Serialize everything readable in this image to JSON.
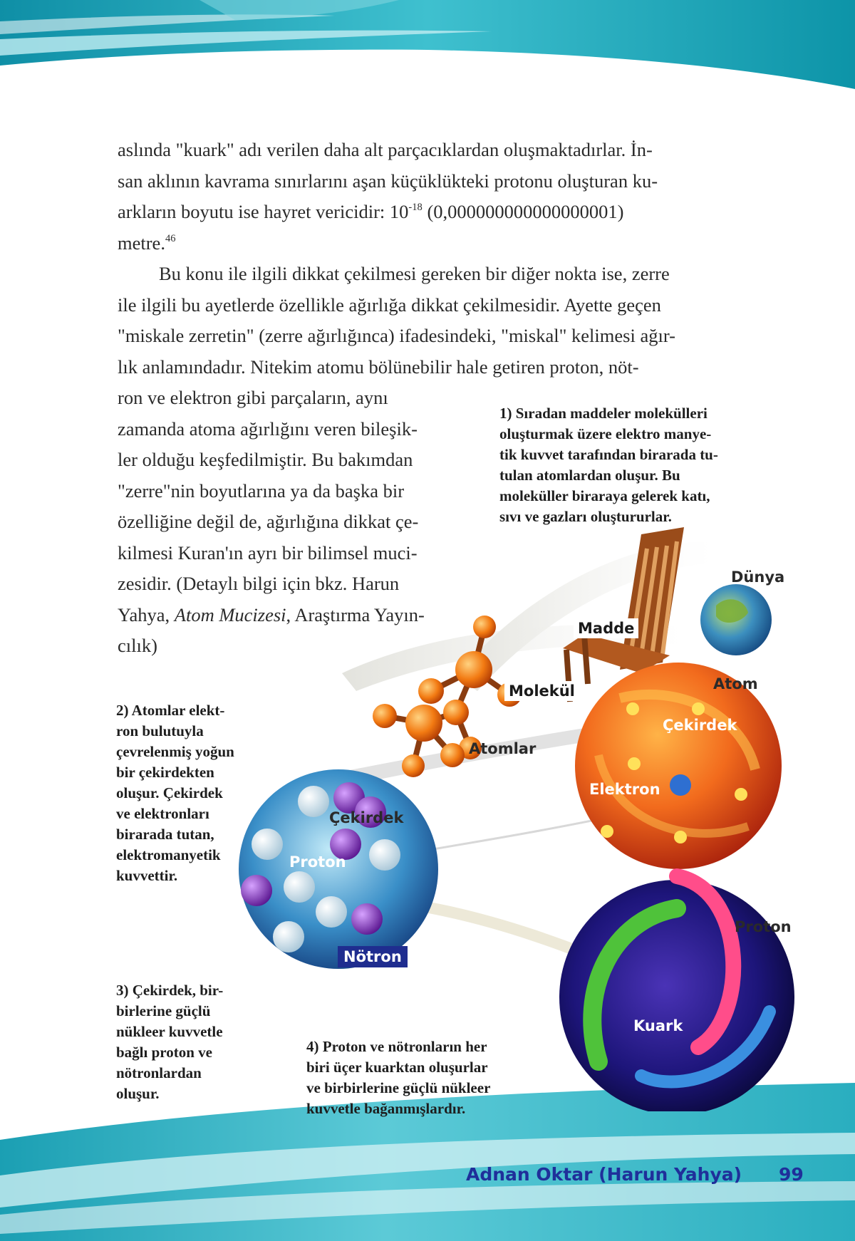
{
  "main_text": {
    "p1_line1": "aslında \"kuark\" adı verilen daha alt parçacıklardan oluşmaktadırlar. İn-",
    "p1_line2": "san aklının kavrama sınırlarını aşan küçüklükteki protonu oluşturan ku-",
    "p1_line3_a": "arkların boyutu ise hayret vericidir: 10",
    "p1_line3_exp": "-18",
    "p1_line3_b": " (0,000000000000000001)",
    "p1_line4_a": "metre.",
    "p1_line4_ref": "46",
    "p2_line1": "Bu konu ile ilgili dikkat çekilmesi gereken bir diğer nokta ise, zerre",
    "p2_line2": "ile ilgili bu ayetlerde özellikle ağırlığa dikkat çekilmesidir. Ayette geçen",
    "p2_line3": "\"miskale zerretin\" (zerre ağırlığınca) ifadesindeki, \"miskal\" kelimesi ağır-",
    "p2_line4": "lık anlamındadır. Nitekim atomu bölünebilir hale getiren proton, nöt-",
    "p2_line5": "ron ve elektron gibi parçaların, aynı",
    "p2_line6": "zamanda atoma ağırlığını veren bileşik-",
    "p2_line7": "ler olduğu keşfedilmiştir. Bu bakımdan",
    "p2_line8": "\"zerre\"nin boyutlarına ya da başka bir",
    "p2_line9": "özelliğine değil de, ağırlığına dikkat çe-",
    "p2_line10": "kilmesi Kuran'ın ayrı bir bilimsel muci-",
    "p2_line11": "zesidir. (Detaylı bilgi için bkz. Harun",
    "p2_line12_a": "Yahya, ",
    "p2_line12_italic": "Atom Mucizesi",
    "p2_line12_b": ", Araştırma Yayın-",
    "p2_line13": "cılık)"
  },
  "captions": {
    "c1": [
      "1) Sıradan maddeler molekülleri",
      "oluşturmak üzere elektro manye-",
      "tik kuvvet tarafından birarada tu-",
      "tulan atomlardan oluşur. Bu",
      "moleküller biraraya gelerek katı,",
      "sıvı ve gazları oluştururlar."
    ],
    "c2": [
      "2) Atomlar elekt-",
      "ron bulutuyla",
      "çevrelenmiş yoğun",
      "bir çekirdekten",
      "oluşur. Çekirdek",
      "ve elektronları",
      "birarada tutan,",
      "elektromanyetik",
      "kuvvettir."
    ],
    "c3": [
      "3) Çekirdek, bir-",
      "birlerine güçlü",
      "nükleer kuvvetle",
      "bağlı proton ve",
      "nötronlardan",
      "oluşur."
    ],
    "c4": [
      "4) Proton ve nötronların her",
      "biri üçer kuarktan oluşurlar",
      "ve birbirlerine güçlü nükleer",
      "kuvvetle bağanmışlardır."
    ]
  },
  "labels": {
    "dunya": "Dünya",
    "madde": "Madde",
    "molekul": "Molekül",
    "atom": "Atom",
    "atomlar": "Atomlar",
    "cekirdek_atom": "Çekirdek",
    "elektron": "Elektron",
    "cekirdek": "Çekirdek",
    "proton_nucleus": "Proton",
    "notron": "Nötron",
    "proton": "Proton",
    "kuark": "Kuark"
  },
  "footer": {
    "author": "Adnan Oktar (Harun Yahya)",
    "page_number": "99"
  },
  "colors": {
    "teal": "#1aa6b8",
    "footer_text": "#1f2f9a"
  }
}
